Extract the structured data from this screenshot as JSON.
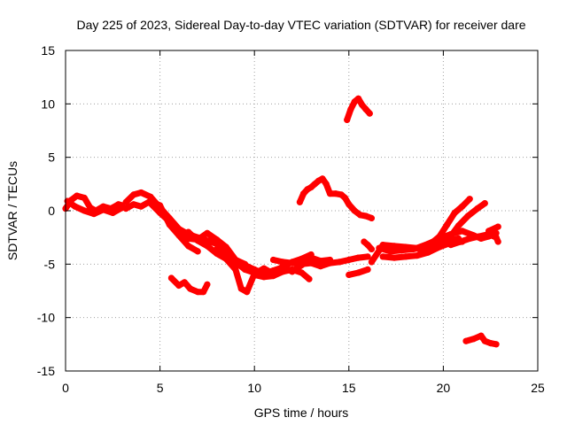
{
  "chart_data": {
    "type": "scatter",
    "title": "Day 225 of 2023, Sidereal Day-to-day VTEC variation (SDTVAR) for receiver dare",
    "xlabel": "GPS time / hours",
    "ylabel": "SDTVAR / TECUs",
    "xlim": [
      0,
      25
    ],
    "ylim": [
      -15,
      15
    ],
    "xticks": [
      "0",
      "5",
      "10",
      "15",
      "20",
      "25"
    ],
    "yticks": [
      "-15",
      "-10",
      "-5",
      "0",
      "5",
      "10",
      "15"
    ],
    "grid": true,
    "series_color": "#ff0000",
    "segments": [
      {
        "name": "track-1",
        "x": [
          0.0,
          0.3,
          0.6,
          1.0,
          1.3,
          1.6,
          2.0,
          2.4,
          2.8,
          3.0
        ],
        "y": [
          0.2,
          1.0,
          1.4,
          1.2,
          0.3,
          0.0,
          0.4,
          0.2,
          0.6,
          0.5
        ]
      },
      {
        "name": "track-2",
        "x": [
          0.1,
          0.5,
          1.0,
          1.5,
          2.0,
          2.5,
          3.0
        ],
        "y": [
          0.9,
          0.4,
          0.0,
          -0.3,
          0.1,
          -0.2,
          0.3
        ]
      },
      {
        "name": "track-3",
        "x": [
          3.2,
          3.6,
          4.0,
          4.5,
          5.0,
          5.5,
          6.0,
          6.5,
          7.0,
          7.5,
          8.0,
          8.5,
          9.0,
          9.5,
          10.0
        ],
        "y": [
          0.8,
          1.5,
          1.7,
          1.3,
          0.3,
          -0.7,
          -1.7,
          -2.2,
          -2.5,
          -2.8,
          -3.1,
          -3.8,
          -4.8,
          -5.5,
          -5.8
        ]
      },
      {
        "name": "track-4",
        "x": [
          3.2,
          3.6,
          4.0,
          4.5,
          5.0,
          5.5,
          6.0,
          6.5,
          7.0
        ],
        "y": [
          0.2,
          0.6,
          0.4,
          0.9,
          0.5,
          -1.3,
          -2.3,
          -3.3,
          -3.8
        ]
      },
      {
        "name": "track-5",
        "x": [
          4.5,
          5.0,
          5.5,
          6.0,
          6.5,
          7.0,
          7.5,
          8.0,
          8.5,
          9.0,
          9.5
        ],
        "y": [
          0.7,
          -0.2,
          -1.0,
          -1.9,
          -2.6,
          -2.7,
          -2.1,
          -2.7,
          -3.4,
          -4.6,
          -5.0
        ]
      },
      {
        "name": "track-6",
        "x": [
          6.5,
          7.0,
          7.5,
          8.0,
          8.5,
          9.0,
          9.3,
          9.6,
          10.0,
          10.5,
          11.0,
          11.5,
          12.0,
          12.5,
          13.0,
          13.5,
          14.0
        ],
        "y": [
          -2.0,
          -2.8,
          -3.3,
          -4.0,
          -4.5,
          -5.5,
          -7.3,
          -7.6,
          -5.9,
          -5.4,
          -5.9,
          -5.2,
          -5.7,
          -5.1,
          -4.4,
          -4.7,
          -4.6
        ]
      },
      {
        "name": "track-7",
        "x": [
          5.6,
          6.0,
          6.3,
          6.6,
          7.0,
          7.3,
          7.5
        ],
        "y": [
          -6.3,
          -7.0,
          -6.7,
          -7.3,
          -7.6,
          -7.6,
          -6.9
        ]
      },
      {
        "name": "track-8",
        "x": [
          8.0,
          8.5,
          9.0,
          9.5,
          10.0,
          10.5,
          11.0,
          11.5,
          12.0,
          12.5,
          13.0
        ],
        "y": [
          -3.6,
          -4.1,
          -4.6,
          -5.1,
          -5.5,
          -5.9,
          -5.6,
          -5.3,
          -4.8,
          -4.5,
          -4.1
        ]
      },
      {
        "name": "track-9",
        "x": [
          10.0,
          10.5,
          11.0,
          11.5,
          12.0,
          12.5,
          12.9
        ],
        "y": [
          -6.0,
          -6.2,
          -6.1,
          -5.7,
          -5.5,
          -5.8,
          -6.4
        ]
      },
      {
        "name": "track-10",
        "x": [
          11.0,
          11.5,
          12.0,
          12.5,
          13.0,
          13.5,
          14.0,
          14.5,
          15.0,
          15.5,
          16.0
        ],
        "y": [
          -4.6,
          -4.8,
          -4.9,
          -5.0,
          -4.9,
          -5.2,
          -4.9,
          -4.8,
          -4.6,
          -4.4,
          -4.3
        ]
      },
      {
        "name": "track-11",
        "x": [
          12.4,
          12.6,
          12.8,
          13.0,
          13.2,
          13.4,
          13.6,
          13.8,
          14.0,
          14.3,
          14.6,
          14.8,
          15.0,
          15.3,
          15.6,
          15.9,
          16.2
        ],
        "y": [
          0.8,
          1.6,
          2.0,
          2.2,
          2.5,
          2.8,
          3.0,
          2.5,
          1.6,
          1.6,
          1.5,
          1.2,
          0.6,
          0.0,
          -0.4,
          -0.5,
          -0.7
        ]
      },
      {
        "name": "track-12",
        "x": [
          14.9,
          15.1,
          15.3,
          15.5,
          15.7,
          15.9,
          16.1
        ],
        "y": [
          8.5,
          9.5,
          10.2,
          10.5,
          9.9,
          9.5,
          9.1
        ]
      },
      {
        "name": "track-13",
        "x": [
          15.0,
          15.5,
          16.0
        ],
        "y": [
          -6.0,
          -5.8,
          -5.5
        ]
      },
      {
        "name": "track-14",
        "x": [
          15.8,
          16.0,
          16.2
        ],
        "y": [
          -2.9,
          -3.2,
          -3.6
        ]
      },
      {
        "name": "track-15",
        "x": [
          16.2,
          16.8,
          17.4,
          18.0,
          18.6,
          19.2,
          19.8,
          20.4,
          21.0,
          21.6,
          22.0,
          22.4,
          22.8
        ],
        "y": [
          -4.8,
          -3.2,
          -3.3,
          -3.4,
          -3.5,
          -3.1,
          -2.6,
          -2.2,
          -1.9,
          -2.3,
          -2.6,
          -2.4,
          -2.1
        ]
      },
      {
        "name": "track-16",
        "x": [
          16.6,
          17.2,
          17.8,
          18.4,
          19.0,
          19.6,
          20.2,
          20.8
        ],
        "y": [
          -3.5,
          -3.8,
          -3.7,
          -3.6,
          -3.4,
          -3.2,
          -2.9,
          -2.6
        ]
      },
      {
        "name": "track-17",
        "x": [
          16.8,
          17.4,
          18.0,
          18.6,
          19.2,
          19.8,
          20.4,
          21.0
        ],
        "y": [
          -4.3,
          -4.4,
          -4.3,
          -4.2,
          -3.9,
          -3.4,
          -3.0,
          -2.9
        ]
      },
      {
        "name": "track-18",
        "x": [
          18.8,
          19.4,
          19.8,
          20.2,
          20.6,
          21.0,
          21.4
        ],
        "y": [
          -3.8,
          -3.0,
          -2.4,
          -1.3,
          -0.2,
          0.4,
          1.1
        ]
      },
      {
        "name": "track-19",
        "x": [
          19.8,
          20.3,
          20.8,
          21.3,
          21.8,
          22.2
        ],
        "y": [
          -3.3,
          -2.6,
          -1.4,
          -0.5,
          0.2,
          0.7
        ]
      },
      {
        "name": "track-20",
        "x": [
          20.4,
          20.9,
          21.4,
          21.9,
          22.4,
          22.8,
          22.9
        ],
        "y": [
          -3.2,
          -2.9,
          -2.6,
          -2.4,
          -2.2,
          -2.5,
          -2.9
        ]
      },
      {
        "name": "track-21",
        "x": [
          22.4,
          22.9
        ],
        "y": [
          -1.9,
          -1.5
        ]
      },
      {
        "name": "track-22",
        "x": [
          21.2,
          21.6,
          22.0,
          22.2,
          22.5,
          22.8
        ],
        "y": [
          -12.2,
          -12.0,
          -11.7,
          -12.2,
          -12.4,
          -12.5
        ]
      }
    ]
  }
}
